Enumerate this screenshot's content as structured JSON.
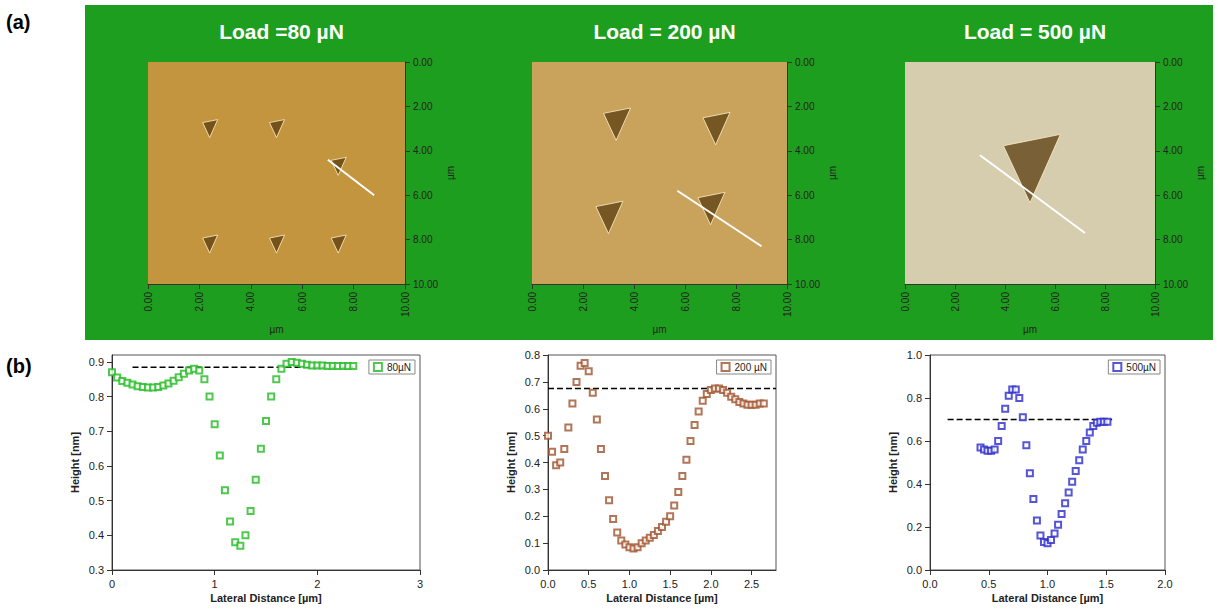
{
  "panel_labels": [
    "(a)",
    "(b)"
  ],
  "chart_data": [
    {
      "type": "image",
      "title": "Load =80 µN",
      "xlabel": "µm",
      "ylabel": "µm",
      "xlim": [
        0,
        10
      ],
      "ylim": [
        0,
        10
      ],
      "xticks": [
        {
          "value": 0,
          "label": "0.00"
        },
        {
          "value": 2,
          "label": "2.00"
        },
        {
          "value": 4,
          "label": "4.00"
        },
        {
          "value": 6,
          "label": "6.00"
        },
        {
          "value": 8,
          "label": "8.00"
        },
        {
          "value": 10,
          "label": "10.00"
        }
      ],
      "yticks": [
        {
          "value": 0,
          "label": "0.00"
        },
        {
          "value": 2,
          "label": "2.00"
        },
        {
          "value": 4,
          "label": "4.00"
        },
        {
          "value": 6,
          "label": "6.00"
        },
        {
          "value": 8,
          "label": "8.00"
        },
        {
          "value": 10,
          "label": "10.00"
        }
      ]
    },
    {
      "type": "image",
      "title": "Load = 200 µN",
      "xlabel": "µm",
      "ylabel": "µm",
      "xlim": [
        0,
        10
      ],
      "ylim": [
        0,
        10
      ],
      "xticks": [
        {
          "value": 0,
          "label": "0.00"
        },
        {
          "value": 2,
          "label": "2.00"
        },
        {
          "value": 4,
          "label": "4.00"
        },
        {
          "value": 6,
          "label": "6.00"
        },
        {
          "value": 8,
          "label": "8.00"
        },
        {
          "value": 10,
          "label": "10.00"
        }
      ],
      "yticks": [
        {
          "value": 0,
          "label": "0.00"
        },
        {
          "value": 2,
          "label": "2.00"
        },
        {
          "value": 4,
          "label": "4.00"
        },
        {
          "value": 6,
          "label": "6.00"
        },
        {
          "value": 8,
          "label": "8.00"
        },
        {
          "value": 10,
          "label": "10.00"
        }
      ]
    },
    {
      "type": "image",
      "title": "Load = 500 µN",
      "xlabel": "µm",
      "ylabel": "µm",
      "xlim": [
        0,
        10
      ],
      "ylim": [
        0,
        10
      ],
      "xticks": [
        {
          "value": 0,
          "label": "0.00"
        },
        {
          "value": 2,
          "label": "2.00"
        },
        {
          "value": 4,
          "label": "4.00"
        },
        {
          "value": 6,
          "label": "6.00"
        },
        {
          "value": 8,
          "label": "8.00"
        },
        {
          "value": 10,
          "label": "10.00"
        }
      ],
      "yticks": [
        {
          "value": 0,
          "label": "0.00"
        },
        {
          "value": 2,
          "label": "2.00"
        },
        {
          "value": 4,
          "label": "4.00"
        },
        {
          "value": 6,
          "label": "6.00"
        },
        {
          "value": 8,
          "label": "8.00"
        },
        {
          "value": 10,
          "label": "10.00"
        }
      ]
    },
    {
      "type": "scatter",
      "xlabel": "Lateral Distance [µm]",
      "ylabel": "Height [nm]",
      "xlim": [
        0,
        3
      ],
      "ylim": [
        0.3,
        0.92
      ],
      "xticks": [
        0,
        1,
        2,
        3
      ],
      "yticks": [
        0.3,
        0.4,
        0.5,
        0.6,
        0.7,
        0.8,
        0.9
      ],
      "legend": "upper right",
      "marker": "square",
      "series": [
        {
          "name": "80µN",
          "color": "#22bb22",
          "x": [
            0,
            0.05,
            0.1,
            0.15,
            0.2,
            0.25,
            0.3,
            0.35,
            0.4,
            0.45,
            0.5,
            0.55,
            0.6,
            0.65,
            0.7,
            0.75,
            0.8,
            0.85,
            0.9,
            0.95,
            1.0,
            1.05,
            1.1,
            1.15,
            1.2,
            1.25,
            1.3,
            1.35,
            1.4,
            1.45,
            1.5,
            1.55,
            1.6,
            1.65,
            1.7,
            1.75,
            1.8,
            1.85,
            1.9,
            1.95,
            2.0,
            2.05,
            2.1,
            2.15,
            2.2,
            2.25,
            2.3,
            2.35
          ],
          "values": [
            0.87,
            0.855,
            0.845,
            0.84,
            0.835,
            0.83,
            0.828,
            0.826,
            0.826,
            0.828,
            0.832,
            0.838,
            0.846,
            0.856,
            0.866,
            0.875,
            0.88,
            0.875,
            0.85,
            0.8,
            0.72,
            0.63,
            0.53,
            0.44,
            0.38,
            0.37,
            0.4,
            0.47,
            0.56,
            0.65,
            0.73,
            0.8,
            0.85,
            0.88,
            0.895,
            0.9,
            0.898,
            0.895,
            0.892,
            0.89,
            0.89,
            0.89,
            0.888,
            0.888,
            0.888,
            0.888,
            0.888,
            0.888
          ]
        }
      ],
      "reference_line": {
        "x": [
          0.2,
          2.35
        ],
        "y": 0.885,
        "line_style": "dashed"
      }
    },
    {
      "type": "scatter",
      "xlabel": "Lateral Distance [µm]",
      "ylabel": "Height [nm]",
      "xlim": [
        0,
        2.8
      ],
      "ylim": [
        0,
        0.8
      ],
      "xticks": [
        {
          "value": 0,
          "label": "0.0"
        },
        0.5,
        {
          "value": 1,
          "label": "1.0"
        },
        1.5,
        {
          "value": 2,
          "label": "2.0"
        },
        2.5
      ],
      "yticks": [
        {
          "value": 0,
          "label": "0.0"
        },
        0.1,
        0.2,
        0.3,
        0.4,
        0.5,
        0.6,
        0.7,
        0.8
      ],
      "legend": "upper right",
      "marker": "square",
      "series": [
        {
          "name": "200 µN",
          "color": "#a0522d",
          "x": [
            0,
            0.05,
            0.1,
            0.15,
            0.2,
            0.25,
            0.3,
            0.35,
            0.4,
            0.45,
            0.5,
            0.55,
            0.6,
            0.65,
            0.7,
            0.75,
            0.8,
            0.85,
            0.9,
            0.95,
            1.0,
            1.05,
            1.1,
            1.15,
            1.2,
            1.25,
            1.3,
            1.35,
            1.4,
            1.45,
            1.5,
            1.55,
            1.6,
            1.65,
            1.7,
            1.75,
            1.8,
            1.85,
            1.9,
            1.95,
            2.0,
            2.05,
            2.1,
            2.15,
            2.2,
            2.25,
            2.3,
            2.35,
            2.4,
            2.45,
            2.5,
            2.55,
            2.6,
            2.65
          ],
          "values": [
            0.5,
            0.44,
            0.39,
            0.4,
            0.45,
            0.53,
            0.62,
            0.7,
            0.76,
            0.77,
            0.74,
            0.66,
            0.56,
            0.45,
            0.35,
            0.26,
            0.19,
            0.14,
            0.11,
            0.095,
            0.085,
            0.08,
            0.085,
            0.1,
            0.11,
            0.12,
            0.13,
            0.145,
            0.16,
            0.18,
            0.2,
            0.24,
            0.29,
            0.35,
            0.41,
            0.48,
            0.54,
            0.59,
            0.63,
            0.655,
            0.67,
            0.675,
            0.675,
            0.67,
            0.66,
            0.645,
            0.635,
            0.625,
            0.62,
            0.615,
            0.615,
            0.615,
            0.62,
            0.62
          ]
        }
      ],
      "reference_line": {
        "x": [
          0,
          2.8
        ],
        "y": 0.675,
        "line_style": "dashed"
      }
    },
    {
      "type": "scatter",
      "xlabel": "Lateral Distance [µm]",
      "ylabel": "Height [nm]",
      "xlim": [
        0,
        2
      ],
      "ylim": [
        0,
        1
      ],
      "xticks": [
        {
          "value": 0,
          "label": "0.0"
        },
        0.5,
        {
          "value": 1,
          "label": "1.0"
        },
        1.5,
        {
          "value": 2,
          "label": "2.0"
        }
      ],
      "yticks": [
        {
          "value": 0,
          "label": "0.0"
        },
        0.2,
        0.4,
        0.6,
        0.8,
        {
          "value": 1,
          "label": "1.0"
        }
      ],
      "legend": "upper right",
      "marker": "square",
      "series": [
        {
          "name": "500µN",
          "color": "#2b2bcc",
          "x": [
            0.43,
            0.46,
            0.49,
            0.52,
            0.55,
            0.58,
            0.61,
            0.64,
            0.67,
            0.7,
            0.73,
            0.76,
            0.79,
            0.82,
            0.85,
            0.88,
            0.91,
            0.94,
            0.97,
            1.0,
            1.03,
            1.06,
            1.09,
            1.12,
            1.15,
            1.18,
            1.21,
            1.24,
            1.27,
            1.3,
            1.33,
            1.36,
            1.39,
            1.42,
            1.45,
            1.48,
            1.51
          ],
          "values": [
            0.57,
            0.56,
            0.555,
            0.555,
            0.56,
            0.6,
            0.67,
            0.75,
            0.81,
            0.84,
            0.84,
            0.8,
            0.71,
            0.58,
            0.45,
            0.33,
            0.23,
            0.16,
            0.13,
            0.125,
            0.14,
            0.17,
            0.21,
            0.26,
            0.31,
            0.36,
            0.41,
            0.46,
            0.51,
            0.56,
            0.6,
            0.64,
            0.67,
            0.685,
            0.69,
            0.69,
            0.69
          ]
        }
      ],
      "reference_line": {
        "x": [
          0.15,
          1.55
        ],
        "y": 0.7,
        "line_style": "dashed"
      }
    }
  ]
}
